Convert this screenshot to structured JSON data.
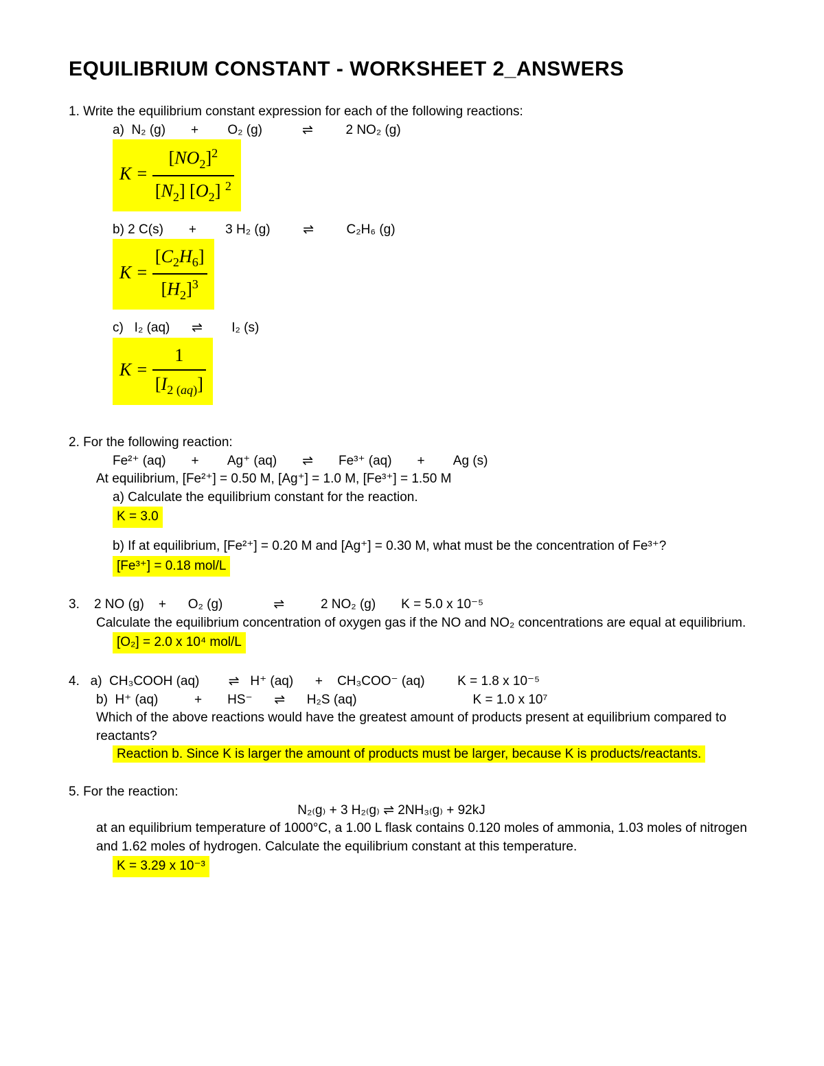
{
  "title": "EQUILIBRIUM CONSTANT - WORKSHEET 2_ANSWERS",
  "q1": {
    "prompt": "1.  Write the equilibrium constant expression for each of the following reactions:",
    "a_rxn": "a)  N₂ (g)       +        O₂ (g)           ⇌         2 NO₂ (g)",
    "b_rxn": "b) 2 C(s)       +        3 H₂ (g)         ⇌         C₂H₆ (g)",
    "c_rxn": "c)   I₂ (aq)      ⇌        I₂ (s)"
  },
  "q2": {
    "prompt": "2.  For the following reaction:",
    "rxn": "Fe²⁺ (aq)       +        Ag⁺ (aq)       ⇌       Fe³⁺ (aq)       +        Ag (s)",
    "given": "At equilibrium, [Fe²⁺] = 0.50 M, [Ag⁺] = 1.0 M, [Fe³⁺] = 1.50 M",
    "a_prompt": "a) Calculate the equilibrium constant for the reaction.",
    "a_ans": "K = 3.0",
    "b_prompt": "b) If at equilibrium, [Fe²⁺] = 0.20 M and [Ag⁺] = 0.30 M, what must be the concentration of Fe³⁺?",
    "b_ans": "[Fe³⁺] = 0.18 mol/L"
  },
  "q3": {
    "rxn": "3.    2 NO (g)    +      O₂ (g)              ⇌          2 NO₂ (g)       K = 5.0 x 10⁻⁵",
    "prompt": "Calculate the equilibrium concentration of oxygen gas if the NO and NO₂ concentrations are equal at equilibrium.",
    "ans": "[O₂] = 2.0 x 10⁴ mol/L"
  },
  "q4": {
    "a_rxn": "4.   a)  CH₃COOH (aq)        ⇌   H⁺ (aq)      +    CH₃COO⁻ (aq)         K = 1.8 x 10⁻⁵",
    "b_rxn": "b)  H⁺ (aq)          +       HS⁻      ⇌      H₂S (aq)                                K = 1.0 x 10⁷",
    "prompt": "Which of the above reactions would have the greatest amount of products present at equilibrium compared to reactants?",
    "ans": "Reaction b. Since K is larger the amount of products must be larger, because K is products/reactants."
  },
  "q5": {
    "prompt": "5.  For the reaction:",
    "rxn": "N₂₍g₎  +   3 H₂₍g₎   ⇌   2NH₃₍g₎   +   92kJ",
    "given": "at an equilibrium temperature of 1000°C, a 1.00 L flask contains 0.120 moles of ammonia, 1.03 moles of nitrogen and 1.62 moles of hydrogen. Calculate the equilibrium constant at this temperature.",
    "ans": "K = 3.29 x 10⁻³"
  },
  "colors": {
    "highlight": "#ffff00",
    "text": "#000000",
    "background": "#ffffff"
  }
}
